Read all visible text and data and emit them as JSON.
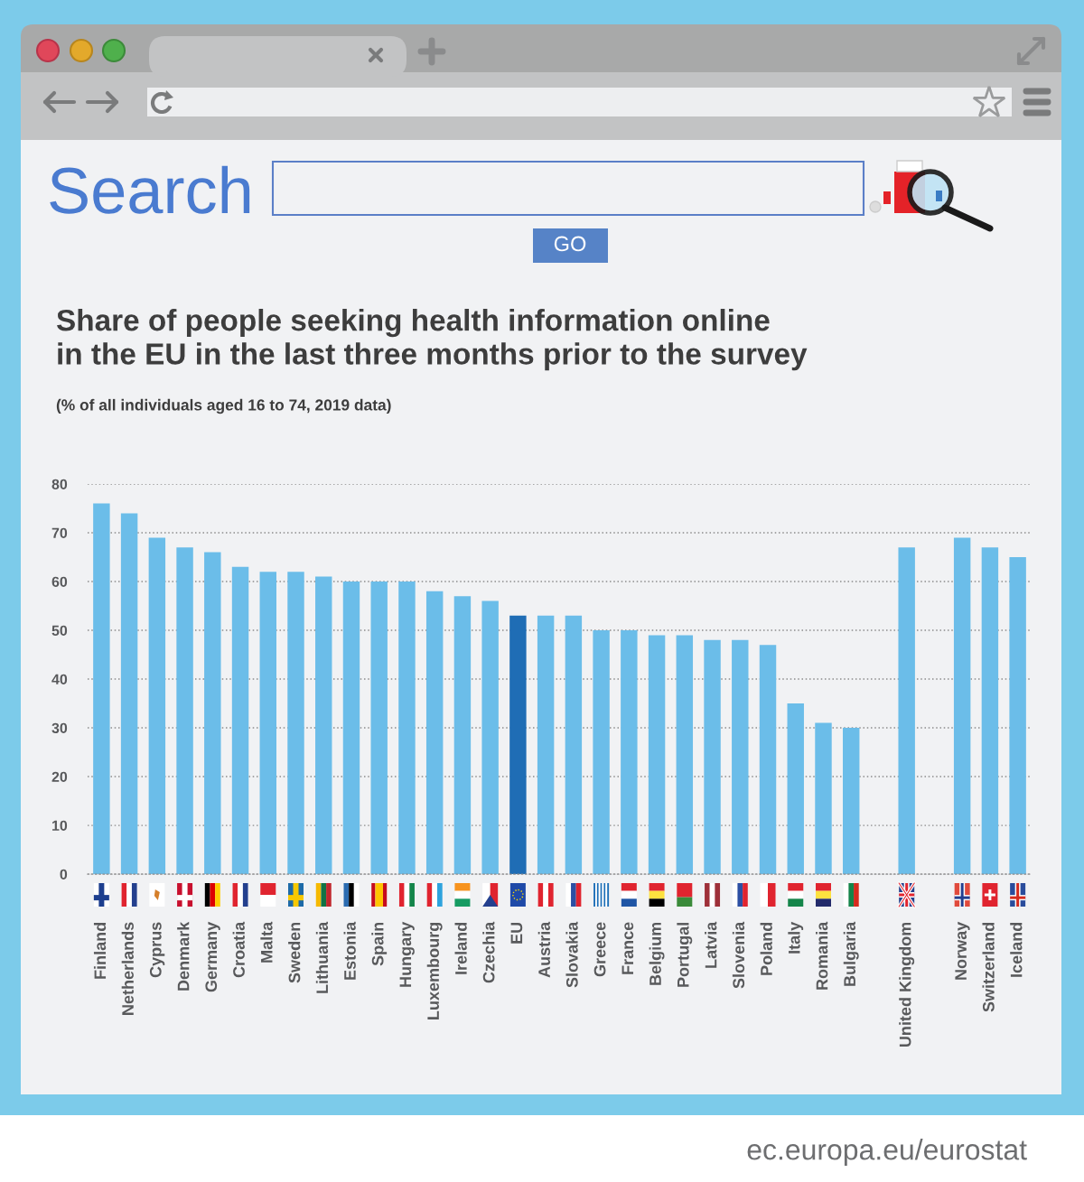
{
  "chart_data": {
    "type": "bar",
    "title": "Share of people seeking health information online\nin the EU in the last three months prior to the survey",
    "subtitle": "(% of all individuals aged 16 to 74, 2019 data)",
    "annotations": [
      "Search",
      "GO",
      "ec.europa.eu/eurostat"
    ],
    "categories": [
      "Finland",
      "Netherlands",
      "Cyprus",
      "Denmark",
      "Germany",
      "Croatia",
      "Malta",
      "Sweden",
      "Lithuania",
      "Estonia",
      "Spain",
      "Hungary",
      "Luxembourg",
      "Ireland",
      "Czechia",
      "EU",
      "Austria",
      "Slovakia",
      "Greece",
      "France",
      "Belgium",
      "Portugal",
      "Latvia",
      "Slovenia",
      "Poland",
      "Italy",
      "Romania",
      "Bulgaria",
      null,
      "United Kingdom",
      null,
      "Norway",
      "Switzerland",
      "Iceland"
    ],
    "values": [
      76,
      74,
      69,
      67,
      66,
      63,
      62,
      62,
      61,
      60,
      60,
      60,
      58,
      57,
      56,
      53,
      53,
      53,
      50,
      50,
      49,
      49,
      48,
      48,
      47,
      35,
      31,
      30,
      null,
      67,
      null,
      69,
      67,
      65
    ],
    "colors": [
      "#6bbde9",
      "#6bbde9",
      "#6bbde9",
      "#6bbde9",
      "#6bbde9",
      "#6bbde9",
      "#6bbde9",
      "#6bbde9",
      "#6bbde9",
      "#6bbde9",
      "#6bbde9",
      "#6bbde9",
      "#6bbde9",
      "#6bbde9",
      "#6bbde9",
      "#1f6db5",
      "#6bbde9",
      "#6bbde9",
      "#6bbde9",
      "#6bbde9",
      "#6bbde9",
      "#6bbde9",
      "#6bbde9",
      "#6bbde9",
      "#6bbde9",
      "#6bbde9",
      "#6bbde9",
      "#6bbde9",
      "#6bbde9",
      "#6bbde9",
      "#6bbde9",
      "#6bbde9",
      "#6bbde9",
      "#6bbde9"
    ],
    "ylim": [
      0,
      80
    ],
    "yticks": [
      0,
      10,
      20,
      30,
      40,
      50,
      60,
      70,
      80
    ],
    "grid": "y"
  }
}
